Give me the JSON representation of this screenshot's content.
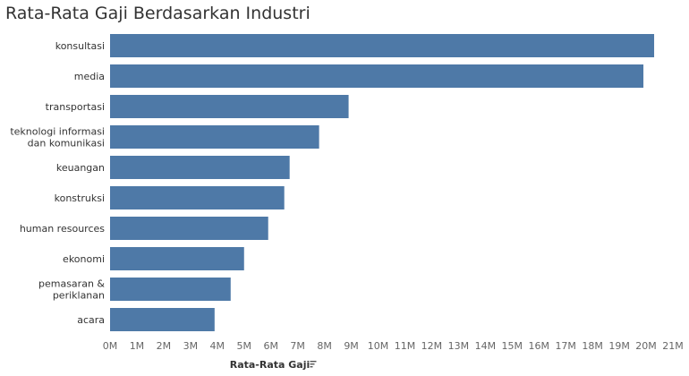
{
  "chart_data": {
    "type": "bar",
    "orientation": "horizontal",
    "title": "Rata-Rata Gaji Berdasarkan Industri",
    "xlabel": "Rata-Rata Gaji",
    "ylabel": "",
    "categories": [
      "konsultasi",
      "media",
      "transportasi",
      "teknologi informasi dan komunikasi",
      "keuangan",
      "konstruksi",
      "human resources",
      "ekonomi",
      "pemasaran & periklanan",
      "acara"
    ],
    "category_lines": [
      [
        "konsultasi"
      ],
      [
        "media"
      ],
      [
        "transportasi"
      ],
      [
        "teknologi informasi",
        "dan komunikasi"
      ],
      [
        "keuangan"
      ],
      [
        "konstruksi"
      ],
      [
        "human resources"
      ],
      [
        "ekonomi"
      ],
      [
        "pemasaran &",
        "periklanan"
      ],
      [
        "acara"
      ]
    ],
    "values": [
      20.3,
      19.9,
      8.9,
      7.8,
      6.7,
      6.5,
      5.9,
      5.0,
      4.5,
      3.9
    ],
    "xlim": [
      0,
      21
    ],
    "xticks": [
      "0M",
      "1M",
      "2M",
      "3M",
      "4M",
      "5M",
      "6M",
      "7M",
      "8M",
      "9M",
      "10M",
      "11M",
      "12M",
      "13M",
      "14M",
      "15M",
      "16M",
      "17M",
      "18M",
      "19M",
      "20M",
      "21M"
    ],
    "unit": "M",
    "grid": false,
    "color": "#4e79a7",
    "sort_icon": "sort-descending-icon"
  }
}
